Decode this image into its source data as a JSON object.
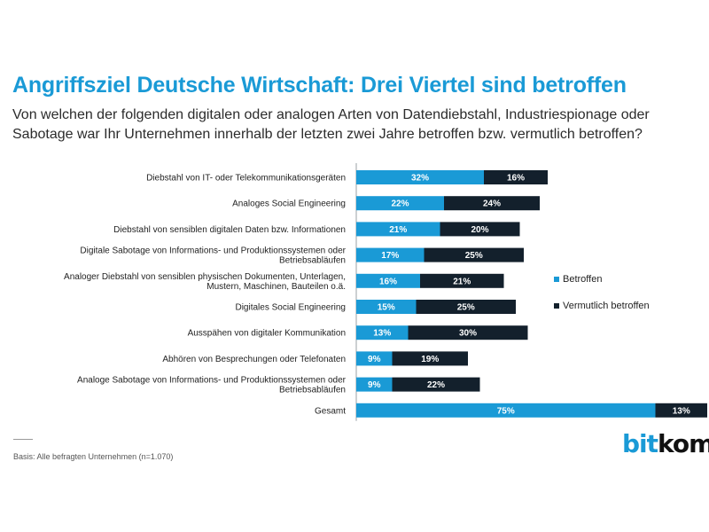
{
  "header": {
    "title": "Angriffsziel Deutsche Wirtschaft: Drei Viertel sind betroffen",
    "subtitle": "Von welchen der folgenden digitalen oder analogen Arten von Datendiebstahl, Industriespionage oder Sabotage war Ihr Unternehmen innerhalb der letzten zwei Jahre betroffen bzw. vermutlich betroffen?"
  },
  "chart_data": {
    "type": "bar",
    "orientation": "horizontal",
    "stacked": true,
    "categories": [
      [
        "Diebstahl von IT- oder Telekommunikationsgeräten"
      ],
      [
        "Analoges Social Engineering"
      ],
      [
        "Diebstahl von sensiblen digitalen Daten bzw. Informationen"
      ],
      [
        "Digitale Sabotage von Informations- und Produktionssystemen oder",
        "Betriebsabläufen"
      ],
      [
        "Analoger Diebstahl von sensiblen physischen Dokumenten, Unterlagen,",
        "Mustern, Maschinen, Bauteilen o.ä."
      ],
      [
        "Digitales Social Engineering"
      ],
      [
        "Ausspähen von digitaler Kommunikation"
      ],
      [
        "Abhören von Besprechungen oder Telefonaten"
      ],
      [
        "Analoge Sabotage von Informations- und Produktionssystemen oder",
        "Betriebsabläufen"
      ],
      [
        "Gesamt"
      ]
    ],
    "series": [
      {
        "name": "Betroffen",
        "color": "#1a9ad6",
        "values": [
          32,
          22,
          21,
          17,
          16,
          15,
          13,
          9,
          9,
          75
        ]
      },
      {
        "name": "Vermutlich betroffen",
        "color": "#13202c",
        "values": [
          16,
          24,
          20,
          25,
          21,
          25,
          30,
          19,
          22,
          13
        ]
      }
    ],
    "value_suffix": "%",
    "legend_position": "right",
    "grid": false,
    "xlim": [
      0,
      88
    ]
  },
  "legend": {
    "items": [
      {
        "label": "Betroffen",
        "color": "#1a9ad6"
      },
      {
        "label": "Vermutlich betroffen",
        "color": "#13202c"
      }
    ]
  },
  "footer": {
    "source": "Basis: Alle befragten Unternehmen (n=1.070)",
    "logo_bit": "bit",
    "logo_kom": "kom"
  }
}
